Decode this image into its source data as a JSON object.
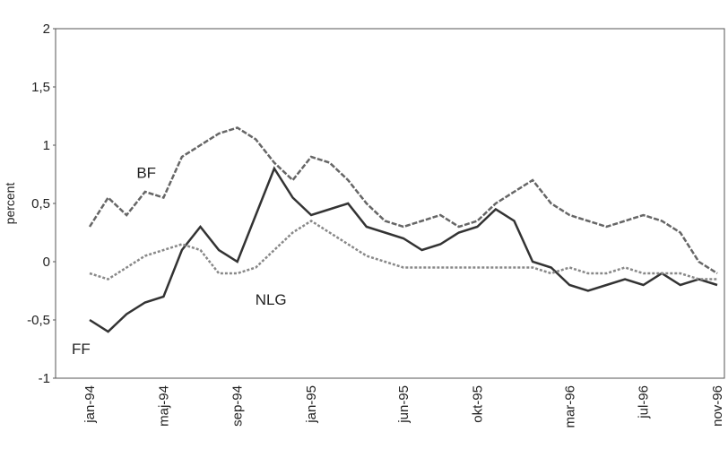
{
  "chart_data": {
    "type": "line",
    "y_label": "percent",
    "categories": [
      "jan-94",
      null,
      null,
      null,
      "maj-94",
      null,
      null,
      null,
      "sep-94",
      null,
      null,
      null,
      "jan-95",
      null,
      null,
      null,
      null,
      "jun-95",
      null,
      null,
      null,
      "okt-95",
      null,
      null,
      null,
      null,
      "mar-96",
      null,
      null,
      null,
      "jul-96",
      null,
      null,
      null,
      "nov-96"
    ],
    "series": [
      {
        "name": "BF",
        "color": "#666666",
        "values": [
          0.3,
          0.55,
          0.4,
          0.6,
          0.55,
          0.9,
          1.0,
          1.1,
          1.15,
          1.05,
          0.85,
          0.7,
          0.9,
          0.85,
          0.7,
          0.5,
          0.35,
          0.3,
          0.35,
          0.4,
          0.3,
          0.35,
          0.5,
          0.6,
          0.7,
          0.5,
          0.4,
          0.35,
          0.3,
          0.35,
          0.4,
          0.35,
          0.25,
          0.0,
          -0.1
        ]
      },
      {
        "name": "FF",
        "color": "#333333",
        "values": [
          -0.5,
          -0.6,
          -0.45,
          -0.35,
          -0.3,
          0.1,
          0.3,
          0.1,
          0.0,
          0.4,
          0.8,
          0.55,
          0.4,
          0.45,
          0.5,
          0.3,
          0.25,
          0.2,
          0.1,
          0.15,
          0.25,
          0.3,
          0.45,
          0.35,
          0.0,
          -0.05,
          -0.2,
          -0.25,
          -0.2,
          -0.15,
          -0.2,
          -0.1,
          -0.2,
          -0.15,
          -0.2
        ]
      },
      {
        "name": "NLG",
        "color": "#888888",
        "values": [
          -0.1,
          -0.15,
          -0.05,
          0.05,
          0.1,
          0.15,
          0.1,
          -0.1,
          -0.1,
          -0.05,
          0.1,
          0.25,
          0.35,
          0.25,
          0.15,
          0.05,
          0.0,
          -0.05,
          -0.05,
          -0.05,
          -0.05,
          -0.05,
          -0.05,
          -0.05,
          -0.05,
          -0.1,
          -0.05,
          -0.1,
          -0.1,
          -0.05,
          -0.1,
          -0.1,
          -0.1,
          -0.15,
          -0.15
        ]
      }
    ],
    "annotations": [
      {
        "text": "BF",
        "series": 0,
        "index": 4
      },
      {
        "text": "NLG",
        "series": 2,
        "index": 8
      },
      {
        "text": "FF",
        "series": 1,
        "index": 0
      }
    ],
    "ylim": [
      -1,
      2
    ],
    "yticks": [
      -1,
      {
        "value": -0.5,
        "label": "-0,5"
      },
      0,
      {
        "value": 0.5,
        "label": "0,5"
      },
      1,
      {
        "value": 1.5,
        "label": "1,5"
      },
      2
    ]
  }
}
